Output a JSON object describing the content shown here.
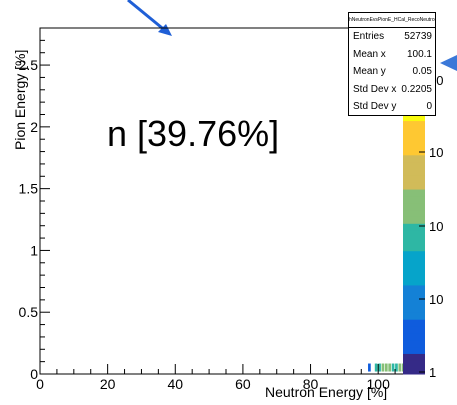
{
  "chart_data": {
    "type": "heatmap",
    "title": "",
    "xlabel": "Neutron Energy [%]",
    "ylabel": "Pion Energy [%]",
    "xlim": [
      0,
      110
    ],
    "ylim": [
      0,
      2.8
    ],
    "x_ticks": [
      "0",
      "20",
      "40",
      "60",
      "80",
      "100"
    ],
    "y_ticks": [
      "0",
      "0.5",
      "1",
      "1.5",
      "2",
      "2.5"
    ],
    "z_ticks": [
      "1",
      "10",
      "10",
      "10",
      "10"
    ],
    "annotation": "n [39.76%]",
    "cells": [
      {
        "x": 99.5,
        "y": 0.02,
        "level": 0.55
      },
      {
        "x": 100.5,
        "y": 0.02,
        "level": 0.55
      },
      {
        "x": 101.5,
        "y": 0.02,
        "level": 0.6
      },
      {
        "x": 102.5,
        "y": 0.02,
        "level": 0.6
      },
      {
        "x": 103.5,
        "y": 0.02,
        "level": 0.6
      },
      {
        "x": 104.5,
        "y": 0.02,
        "level": 0.55
      },
      {
        "x": 105.5,
        "y": 0.02,
        "level": 0.55
      },
      {
        "x": 106.5,
        "y": 0.02,
        "level": 0.6
      },
      {
        "x": 107.5,
        "y": 0.02,
        "level": 0.6
      },
      {
        "x": 108.5,
        "y": 0.02,
        "level": 0.6
      },
      {
        "x": 97.5,
        "y": 0.02,
        "level": 0.15
      }
    ]
  },
  "stats": {
    "title": "hNeutronEvsPionE_HCal_RecoNeutron",
    "rows": [
      {
        "label": "Entries",
        "value": "52739"
      },
      {
        "label": "Mean x",
        "value": "100.1"
      },
      {
        "label": "Mean y",
        "value": "0.05"
      },
      {
        "label": "Std Dev x",
        "value": "0.2205"
      },
      {
        "label": "Std Dev y",
        "value": "0"
      }
    ]
  },
  "colors": {
    "arrow": "#1f5fd6",
    "palette": [
      "#352a87",
      "#0f5cdd",
      "#1481d6",
      "#06a4ca",
      "#2eb7a4",
      "#87bf77",
      "#d1bb59",
      "#fec832",
      "#f9fb0e"
    ]
  }
}
